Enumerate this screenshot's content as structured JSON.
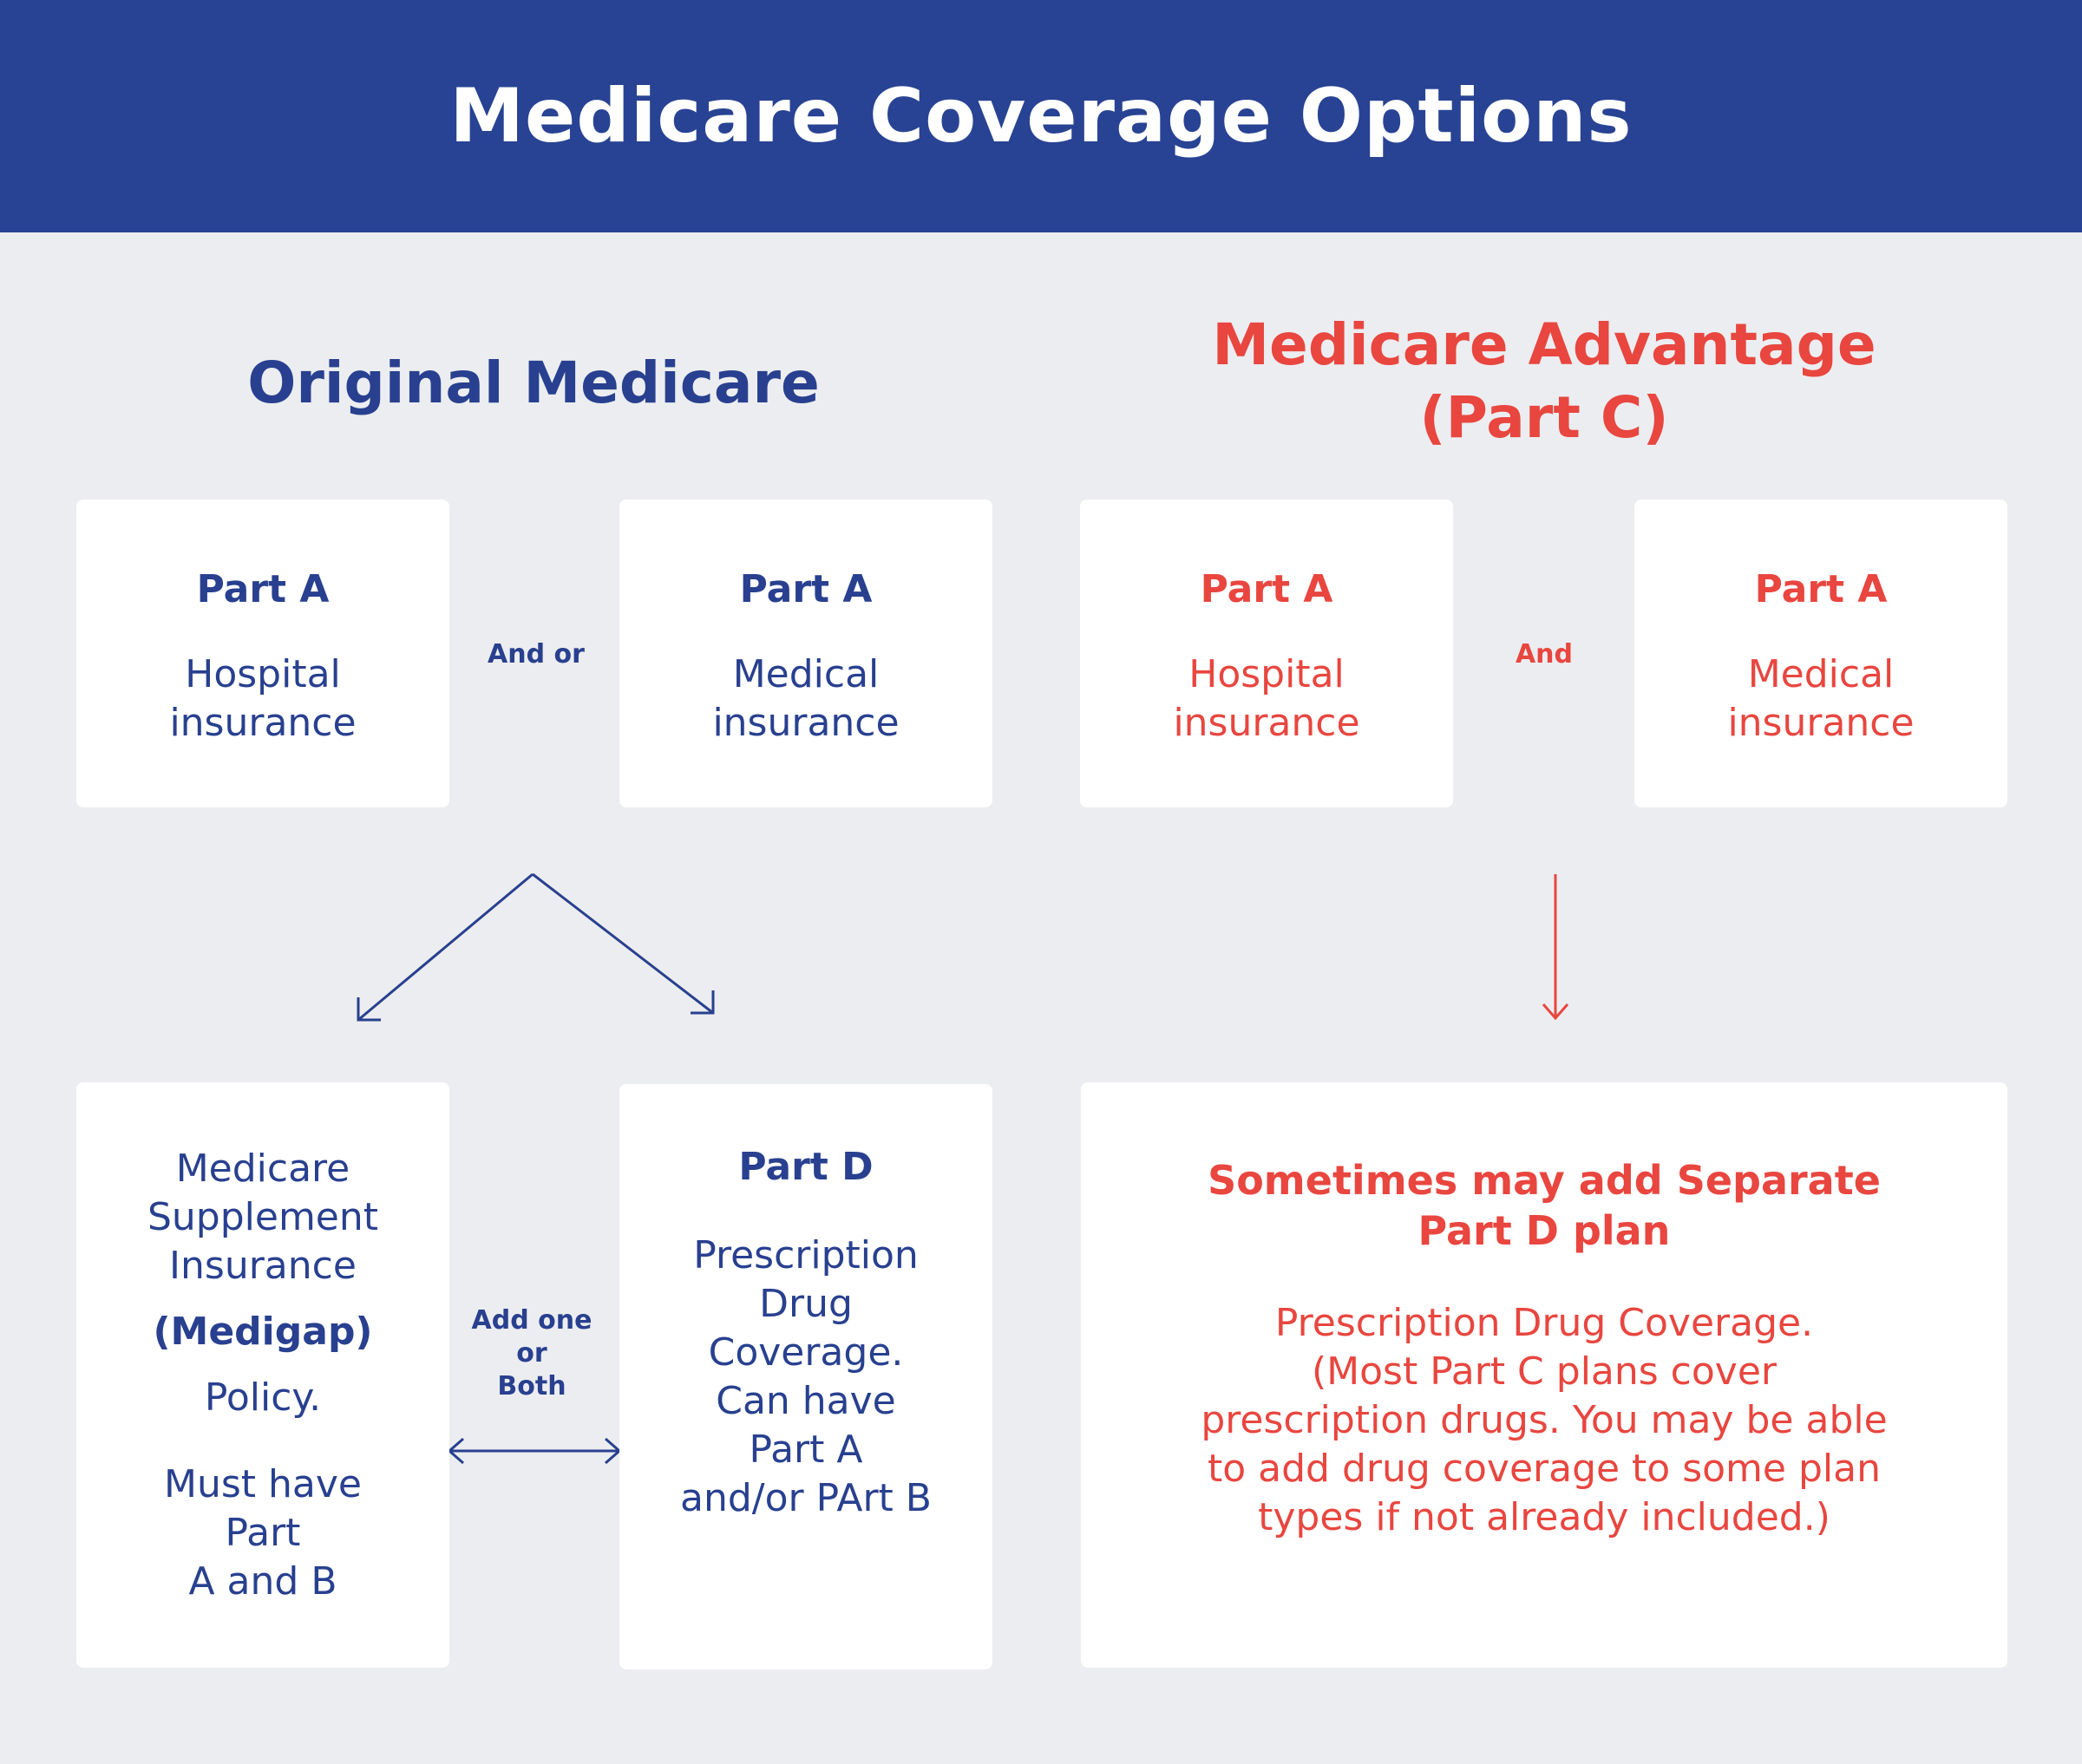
{
  "header": {
    "title": "Medicare Coverage Options"
  },
  "original": {
    "title": "Original Medicare",
    "card_a": {
      "part": "Part A",
      "desc": [
        "Hospital",
        "insurance"
      ]
    },
    "connector": "And or",
    "card_b": {
      "part": "Part A",
      "desc": [
        "Medical",
        "insurance"
      ]
    },
    "medigap": {
      "desc": [
        "Medicare",
        "Supplement",
        "Insurance"
      ],
      "bold": "(Medigap)",
      "policy": "Policy.",
      "must": [
        "Must have",
        "Part",
        "A and B"
      ]
    },
    "add_connector": [
      "Add one",
      "or",
      "Both"
    ],
    "part_d": {
      "part": "Part D",
      "desc": [
        "Prescription",
        "Drug",
        "Coverage.",
        "Can have",
        "Part A",
        "and/or PArt B"
      ]
    }
  },
  "advantage": {
    "title": [
      "Medicare Advantage",
      "(Part C)"
    ],
    "card_a": {
      "part": "Part A",
      "desc": [
        "Hospital",
        "insurance"
      ]
    },
    "connector": "And",
    "card_b": {
      "part": "Part A",
      "desc": [
        "Medical",
        "insurance"
      ]
    },
    "bottom": {
      "title": [
        "Sometimes may add Separate",
        "Part D plan"
      ],
      "desc": [
        "Prescription Drug Coverage.",
        "(Most Part C plans cover",
        "prescription drugs. You may be able",
        "to add drug coverage to some plan",
        "types if not already included.)"
      ]
    }
  },
  "colors": {
    "header_bg": "#284393",
    "blue": "#28408f",
    "red": "#e8463f",
    "background": "#ecedf0"
  }
}
